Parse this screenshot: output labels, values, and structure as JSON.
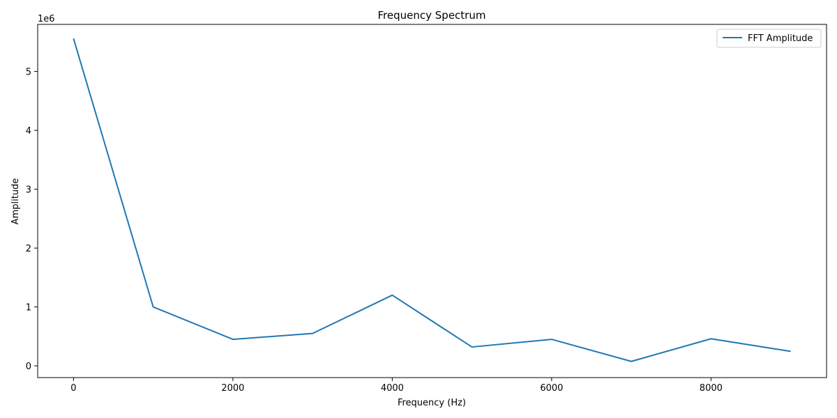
{
  "chart_data": {
    "type": "line",
    "title": "Frequency Spectrum",
    "xlabel": "Frequency (Hz)",
    "ylabel": "Amplitude",
    "y_offset_label": "1e6",
    "y_scale_factor": 1000000,
    "xlim": [
      -450,
      9450
    ],
    "ylim": [
      -200000,
      5800000
    ],
    "x_ticks": [
      0,
      2000,
      4000,
      6000,
      8000
    ],
    "x_tick_labels": [
      "0",
      "2000",
      "4000",
      "6000",
      "8000"
    ],
    "y_ticks": [
      0,
      1000000,
      2000000,
      3000000,
      4000000,
      5000000
    ],
    "y_tick_labels": [
      "0",
      "1",
      "2",
      "3",
      "4",
      "5"
    ],
    "grid": false,
    "legend_position": "upper right",
    "series": [
      {
        "name": "FFT Amplitude",
        "color": "#1f77b4",
        "x": [
          0,
          1000,
          2000,
          3000,
          4000,
          5000,
          6000,
          7000,
          8000,
          9000
        ],
        "y": [
          5560000,
          1000000,
          450000,
          550000,
          1200000,
          320000,
          450000,
          75000,
          460000,
          245000
        ]
      }
    ]
  }
}
